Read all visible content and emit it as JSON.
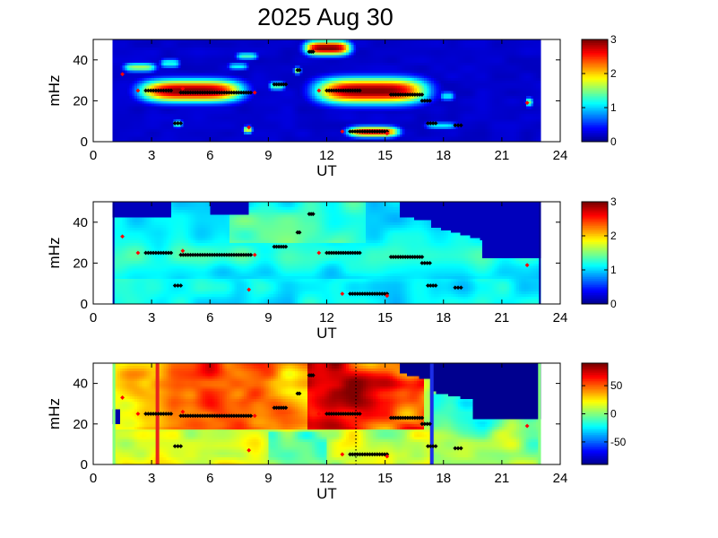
{
  "title": "2025 Aug 30",
  "colors": {
    "jet": [
      "#00008f",
      "#0000ff",
      "#0080ff",
      "#00ffff",
      "#80ff80",
      "#ffff00",
      "#ff8000",
      "#ff0000",
      "#800000"
    ],
    "marker_black": "#000000",
    "marker_red": "#ff0000",
    "line_red": "#e8261c",
    "line_blue": "#1c2ee8"
  },
  "chart_data": [
    {
      "type": "heatmap",
      "panel": "power",
      "xlabel": "UT",
      "ylabel": "mHz",
      "xlim": [
        0,
        24
      ],
      "ylim": [
        0,
        50
      ],
      "xticks": [
        "0",
        "3",
        "6",
        "9",
        "12",
        "15",
        "18",
        "21",
        "24"
      ],
      "yticks": [
        "0",
        "20",
        "40"
      ],
      "data_range_ut": [
        1.0,
        23.0
      ],
      "colorbar": {
        "range": [
          0,
          3
        ],
        "ticks": [
          "0",
          "1",
          "2",
          "3"
        ]
      },
      "features": [
        {
          "ut": [
            2.3,
            7.8
          ],
          "mhz": [
            19,
            31
          ],
          "value": 3.0
        },
        {
          "ut": [
            11.3,
            17.3
          ],
          "mhz": [
            18,
            32
          ],
          "value": 3.0
        },
        {
          "ut": [
            10.8,
            13.3
          ],
          "mhz": [
            42,
            50
          ],
          "value": 3.0
        },
        {
          "ut": [
            13.0,
            15.8
          ],
          "mhz": [
            2,
            8
          ],
          "value": 2.6
        },
        {
          "ut": [
            1.5,
            3.3
          ],
          "mhz": [
            34,
            39
          ],
          "value": 1.6
        },
        {
          "ut": [
            3.4,
            4.5
          ],
          "mhz": [
            36,
            41
          ],
          "value": 1.2
        },
        {
          "ut": [
            6.9,
            8.0
          ],
          "mhz": [
            35,
            39
          ],
          "value": 1.1
        },
        {
          "ut": [
            7.3,
            8.5
          ],
          "mhz": [
            40,
            44
          ],
          "value": 1.3
        },
        {
          "ut": [
            9.0,
            9.9
          ],
          "mhz": [
            25,
            30
          ],
          "value": 1.4
        },
        {
          "ut": [
            10.3,
            10.7
          ],
          "mhz": [
            33,
            37
          ],
          "value": 1.6
        },
        {
          "ut": [
            4.1,
            4.6
          ],
          "mhz": [
            7,
            11
          ],
          "value": 1.5
        },
        {
          "ut": [
            7.7,
            8.2
          ],
          "mhz": [
            4,
            8
          ],
          "value": 1.8
        },
        {
          "ut": [
            15.9,
            16.5
          ],
          "mhz": [
            21,
            26
          ],
          "value": 1.5
        },
        {
          "ut": [
            17.8,
            18.6
          ],
          "mhz": [
            20,
            25
          ],
          "value": 1.1
        },
        {
          "ut": [
            17.0,
            18.8
          ],
          "mhz": [
            6,
            10
          ],
          "value": 1.1
        },
        {
          "ut": [
            22.2,
            22.6
          ],
          "mhz": [
            17,
            22
          ],
          "value": 1.5
        }
      ]
    },
    {
      "type": "heatmap",
      "panel": "coherence",
      "xlabel": "UT",
      "ylabel": "mHz",
      "xlim": [
        0,
        24
      ],
      "ylim": [
        0,
        50
      ],
      "xticks": [
        "0",
        "3",
        "6",
        "9",
        "12",
        "15",
        "18",
        "21",
        "24"
      ],
      "yticks": [
        "0",
        "20",
        "40"
      ],
      "data_range_ut": [
        1.0,
        23.0
      ],
      "colorbar": {
        "range": [
          0,
          3
        ],
        "ticks": [
          "0",
          "1",
          "2",
          "3"
        ]
      }
    },
    {
      "type": "heatmap",
      "panel": "phase",
      "xlabel": "UT",
      "ylabel": "mHz",
      "xlim": [
        0,
        24
      ],
      "ylim": [
        0,
        50
      ],
      "xticks": [
        "0",
        "3",
        "6",
        "9",
        "12",
        "15",
        "18",
        "21",
        "24"
      ],
      "yticks": [
        "0",
        "20",
        "40"
      ],
      "data_range_ut": [
        1.0,
        23.0
      ],
      "colorbar": {
        "range": [
          -90,
          90
        ],
        "ticks": [
          "-50",
          "0",
          "50"
        ]
      },
      "vlines": [
        {
          "ut": 3.3,
          "color": "red"
        },
        {
          "ut": 13.5,
          "color": "black-dotted"
        },
        {
          "ut": 17.4,
          "color": "blue"
        }
      ]
    }
  ],
  "markers": {
    "black": [
      {
        "ut": [
          2.7,
          4.0
        ],
        "mhz": 25
      },
      {
        "ut": [
          4.5,
          8.1
        ],
        "mhz": 24
      },
      {
        "ut": [
          9.3,
          9.9
        ],
        "mhz": 28
      },
      {
        "ut": [
          12.0,
          13.7
        ],
        "mhz": 25
      },
      {
        "ut": [
          13.2,
          15.1
        ],
        "mhz": 5
      },
      {
        "ut": [
          15.3,
          16.9
        ],
        "mhz": 23
      },
      {
        "ut": [
          16.9,
          17.3
        ],
        "mhz": 20
      },
      {
        "ut": [
          17.2,
          17.6
        ],
        "mhz": 9
      },
      {
        "ut": [
          18.6,
          18.9
        ],
        "mhz": 8
      },
      {
        "ut": [
          4.2,
          4.5
        ],
        "mhz": 9
      },
      {
        "ut": [
          10.5,
          10.6
        ],
        "mhz": 35
      },
      {
        "ut": [
          11.1,
          11.3
        ],
        "mhz": 44
      }
    ],
    "red": [
      {
        "ut": 1.5,
        "mhz": 33
      },
      {
        "ut": 2.3,
        "mhz": 25
      },
      {
        "ut": 4.6,
        "mhz": 26
      },
      {
        "ut": 8.0,
        "mhz": 7
      },
      {
        "ut": 8.3,
        "mhz": 24
      },
      {
        "ut": 11.6,
        "mhz": 25
      },
      {
        "ut": 12.8,
        "mhz": 5
      },
      {
        "ut": 15.1,
        "mhz": 4
      },
      {
        "ut": 22.3,
        "mhz": 19
      }
    ]
  }
}
